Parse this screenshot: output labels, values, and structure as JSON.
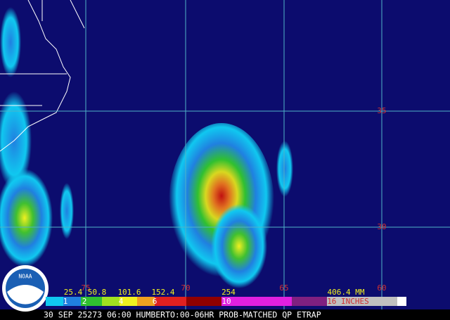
{
  "map": {
    "lat_labels": [
      "35",
      "30"
    ],
    "lon_labels": [
      "75",
      "70",
      "65",
      "60"
    ]
  },
  "logo": {
    "text": "NOAA"
  },
  "legend": {
    "mm_labels": [
      "25.4",
      "50.8",
      "101.6",
      "152.4",
      "254",
      "406.4 MM"
    ],
    "inch_labels": [
      "1",
      "2",
      "4",
      "6",
      "10",
      "16 INCHES"
    ]
  },
  "footer": {
    "caption": "30 SEP 25273 06:00 HUMBERTO:00-06HR PROB-MATCHED QP ETRAP"
  }
}
